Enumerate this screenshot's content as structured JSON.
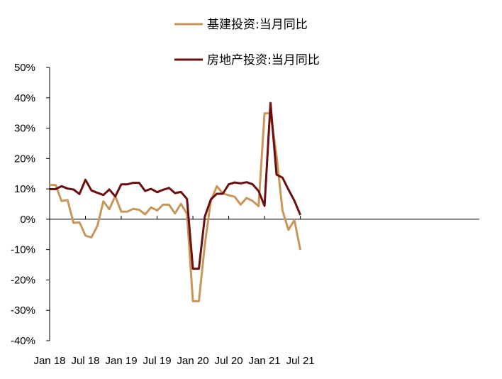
{
  "chart_data": {
    "type": "line",
    "title": "",
    "xlabel": "",
    "ylabel": "",
    "ylim": [
      -40,
      50
    ],
    "yticks": [
      -40,
      -30,
      -20,
      -10,
      0,
      10,
      20,
      30,
      40,
      50
    ],
    "ytick_labels": [
      "-40%",
      "-30%",
      "-20%",
      "-10%",
      "0%",
      "10%",
      "20%",
      "30%",
      "40%",
      "50%"
    ],
    "xtick_labels": [
      "Jan 18",
      "Jul 18",
      "Jan 19",
      "Jul 19",
      "Jan 20",
      "Jul 20",
      "Jan 21",
      "Jul 21"
    ],
    "x": [
      "2018-01",
      "2018-02",
      "2018-03",
      "2018-04",
      "2018-05",
      "2018-06",
      "2018-07",
      "2018-08",
      "2018-09",
      "2018-10",
      "2018-11",
      "2018-12",
      "2019-01",
      "2019-02",
      "2019-03",
      "2019-04",
      "2019-05",
      "2019-06",
      "2019-07",
      "2019-08",
      "2019-09",
      "2019-10",
      "2019-11",
      "2019-12",
      "2020-01",
      "2020-02",
      "2020-03",
      "2020-04",
      "2020-05",
      "2020-06",
      "2020-07",
      "2020-08",
      "2020-09",
      "2020-10",
      "2020-11",
      "2020-12",
      "2021-01",
      "2021-02",
      "2021-03",
      "2021-04",
      "2021-05",
      "2021-06",
      "2021-07"
    ],
    "legend_position": "top",
    "grid": false,
    "series": [
      {
        "name": "基建投资:当月同比",
        "color": "#C9965A",
        "values": [
          11.3,
          11.3,
          6.0,
          6.3,
          -1.2,
          -1.0,
          -5.4,
          -6.0,
          -2.2,
          5.9,
          3.3,
          7.6,
          2.5,
          2.5,
          3.4,
          3.1,
          1.6,
          3.9,
          2.9,
          4.8,
          4.8,
          1.9,
          5.1,
          1.8,
          -27.0,
          -27.0,
          -8.4,
          6.0,
          10.9,
          8.5,
          7.9,
          7.4,
          4.8,
          7.0,
          6.0,
          4.3,
          34.9,
          34.9,
          21.0,
          2.9,
          -3.5,
          -0.3,
          -10.1
        ]
      },
      {
        "name": "房地产投资:当月同比",
        "color": "#6B0E0E",
        "values": [
          9.9,
          9.9,
          10.9,
          10.1,
          9.8,
          8.3,
          13.0,
          9.5,
          8.7,
          8.0,
          9.8,
          7.5,
          11.5,
          11.5,
          12.0,
          12.0,
          9.3,
          10.0,
          8.9,
          9.7,
          10.3,
          8.6,
          9.0,
          6.7,
          -16.3,
          -16.3,
          0.9,
          6.5,
          8.4,
          8.4,
          11.5,
          12.1,
          11.8,
          12.2,
          11.5,
          9.3,
          4.4,
          38.3,
          14.7,
          13.7,
          9.8,
          6.1,
          1.4
        ]
      }
    ]
  }
}
